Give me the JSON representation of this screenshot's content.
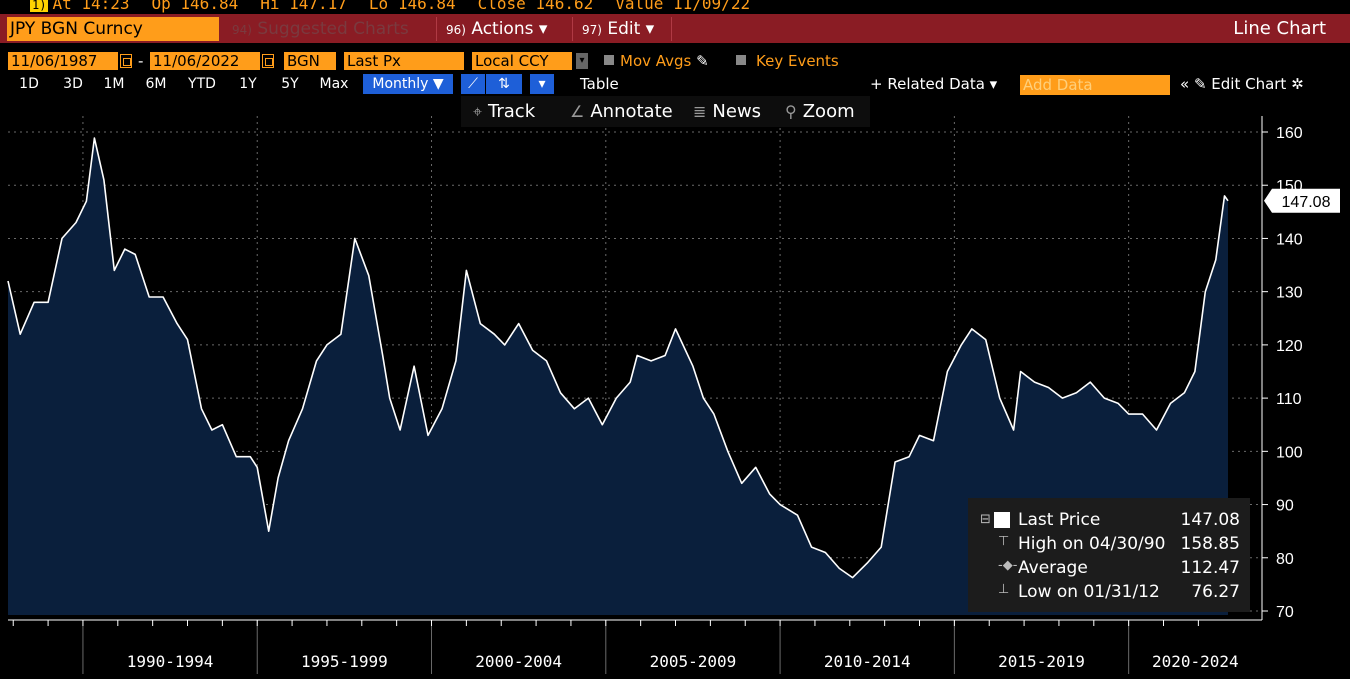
{
  "ticker": {
    "key": "1)",
    "at": "At 14:23",
    "op": "Op 146.84",
    "hi": "Hi 147.17",
    "lo": "Lo 146.84",
    "close": "Close 146.62",
    "value": "Value 11/09/22"
  },
  "menu": {
    "security": "JPY BGN Curncy",
    "suggested_num": "94)",
    "suggested": "Suggested Charts",
    "actions_num": "96)",
    "actions": "Actions ▾",
    "edit_num": "97)",
    "edit": "Edit ▾",
    "chart_type": "Line Chart"
  },
  "range": {
    "start": "11/06/1987",
    "dash": "-",
    "end": "11/06/2022",
    "source": "BGN",
    "field": "Last Px",
    "currency": "Local CCY",
    "mov_avgs": "Mov Avgs",
    "key_events": "Key Events"
  },
  "periods": [
    "1D",
    "3D",
    "1M",
    "6M",
    "YTD",
    "1Y",
    "5Y",
    "Max"
  ],
  "period_selected": "Monthly ▼",
  "toolbar": {
    "table": "Table",
    "related": "+ Related Data ▾",
    "add_data": "Add Data",
    "edit_chart": "« ✎ Edit Chart ✲",
    "track": "Track",
    "annotate": "Annotate",
    "news": "News",
    "zoom": "Zoom"
  },
  "legend": {
    "last_label": "Last Price",
    "last_value": "147.08",
    "high_label": "High on 04/30/90",
    "high_value": "158.85",
    "avg_label": "Average",
    "avg_value": "112.47",
    "low_label": "Low on 01/31/12",
    "low_value": "76.27"
  },
  "colors": {
    "accent": "#ff9d1a",
    "menu_bg": "#8a1c24",
    "area": "#0a1f3c",
    "line": "#ffffff"
  },
  "chart_data": {
    "type": "area",
    "series": [
      {
        "name": "Last Price",
        "x": [
          1987.85,
          1988.2,
          1988.6,
          1989.0,
          1989.4,
          1989.8,
          1990.1,
          1990.33,
          1990.6,
          1990.9,
          1991.2,
          1991.5,
          1991.9,
          1992.3,
          1992.7,
          1993.0,
          1993.4,
          1993.7,
          1994.0,
          1994.4,
          1994.8,
          1995.0,
          1995.33,
          1995.6,
          1995.9,
          1996.3,
          1996.7,
          1997.0,
          1997.4,
          1997.8,
          1998.2,
          1998.6,
          1998.8,
          1999.1,
          1999.5,
          1999.9,
          2000.3,
          2000.7,
          2001.0,
          2001.4,
          2001.8,
          2002.1,
          2002.5,
          2002.9,
          2003.3,
          2003.7,
          2004.1,
          2004.5,
          2004.9,
          2005.3,
          2005.7,
          2005.9,
          2006.3,
          2006.7,
          2007.0,
          2007.5,
          2007.8,
          2008.1,
          2008.5,
          2008.9,
          2009.3,
          2009.7,
          2010.0,
          2010.5,
          2010.9,
          2011.3,
          2011.7,
          2012.08,
          2012.5,
          2012.9,
          2013.3,
          2013.7,
          2014.0,
          2014.4,
          2014.8,
          2015.2,
          2015.5,
          2015.9,
          2016.3,
          2016.7,
          2016.9,
          2017.3,
          2017.7,
          2018.1,
          2018.5,
          2018.9,
          2019.3,
          2019.7,
          2020.0,
          2020.4,
          2020.8,
          2021.2,
          2021.6,
          2021.9,
          2022.2,
          2022.5,
          2022.75,
          2022.85
        ],
        "y": [
          132,
          122,
          128,
          128,
          140,
          143,
          147,
          158.85,
          151,
          134,
          138,
          137,
          129,
          129,
          124,
          121,
          108,
          104,
          105,
          99,
          99,
          97,
          85,
          95,
          102,
          108,
          117,
          120,
          122,
          140,
          133,
          118,
          110,
          104,
          116,
          103,
          108,
          117,
          134,
          124,
          122,
          120,
          124,
          119,
          117,
          111,
          108,
          110,
          105,
          110,
          113,
          118,
          117,
          118,
          123,
          116,
          110,
          107,
          100,
          94,
          97,
          92,
          90,
          88,
          82,
          81,
          78,
          76.27,
          79,
          82,
          98,
          99,
          103,
          102,
          115,
          120,
          123,
          121,
          110,
          104,
          115,
          113,
          112,
          110,
          111,
          113,
          110,
          109,
          107,
          107,
          104,
          109,
          111,
          115,
          130,
          136,
          148,
          147.08
        ]
      }
    ],
    "x_ticks": [
      "1990-1994",
      "1995-1999",
      "2000-2004",
      "2005-2009",
      "2010-2014",
      "2015-2019",
      "2020-2024"
    ],
    "y_ticks": [
      70,
      80,
      90,
      100,
      110,
      120,
      130,
      140,
      150,
      160
    ],
    "ylim": [
      68,
      164
    ],
    "last_value_label": "147.08",
    "grid": true
  }
}
